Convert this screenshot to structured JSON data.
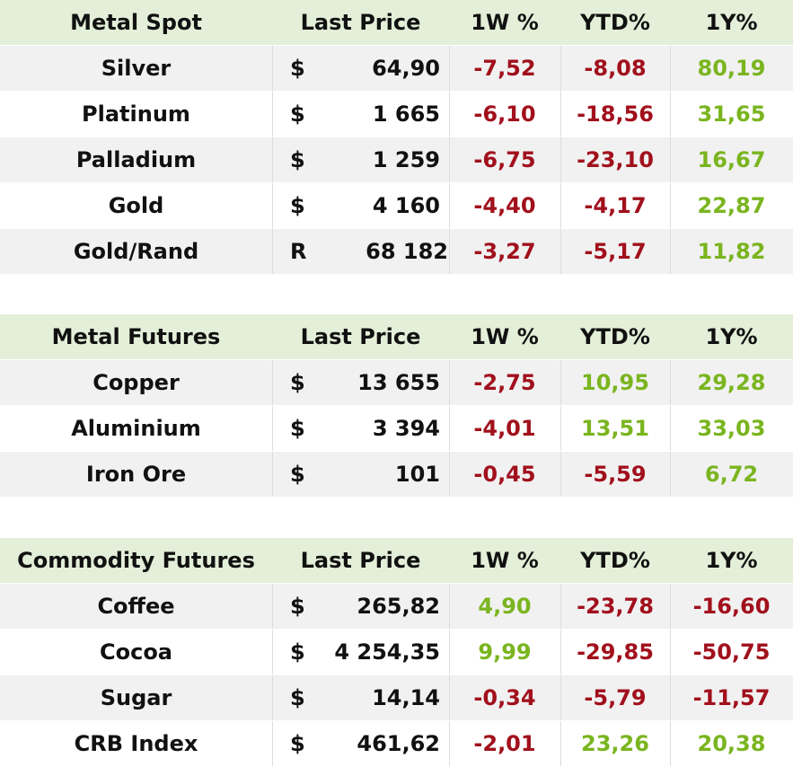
{
  "headers": {
    "price": "Last Price",
    "w": "1W %",
    "ytd": "YTD%",
    "y": "1Y%"
  },
  "tables": [
    {
      "title": "Metal Spot",
      "rows": [
        {
          "name": "Silver",
          "cur": "$",
          "price": "64,90",
          "w": "-7,52",
          "ytd": "-8,08",
          "y": "80,19"
        },
        {
          "name": "Platinum",
          "cur": "$",
          "price": "1 665",
          "w": "-6,10",
          "ytd": "-18,56",
          "y": "31,65"
        },
        {
          "name": "Palladium",
          "cur": "$",
          "price": "1 259",
          "w": "-6,75",
          "ytd": "-23,10",
          "y": "16,67"
        },
        {
          "name": "Gold",
          "cur": "$",
          "price": "4 160",
          "w": "-4,40",
          "ytd": "-4,17",
          "y": "22,87"
        },
        {
          "name": "Gold/Rand",
          "cur": "R",
          "price": "68 182",
          "w": "-3,27",
          "ytd": "-5,17",
          "y": "11,82"
        }
      ]
    },
    {
      "title": "Metal Futures",
      "rows": [
        {
          "name": "Copper",
          "cur": "$",
          "price": "13 655",
          "w": "-2,75",
          "ytd": "10,95",
          "y": "29,28"
        },
        {
          "name": "Aluminium",
          "cur": "$",
          "price": "3 394",
          "w": "-4,01",
          "ytd": "13,51",
          "y": "33,03"
        },
        {
          "name": "Iron Ore",
          "cur": "$",
          "price": "101",
          "w": "-0,45",
          "ytd": "-5,59",
          "y": "6,72"
        }
      ]
    },
    {
      "title": "Commodity Futures",
      "rows": [
        {
          "name": "Coffee",
          "cur": "$",
          "price": "265,82",
          "w": "4,90",
          "ytd": "-23,78",
          "y": "-16,60"
        },
        {
          "name": "Cocoa",
          "cur": "$",
          "price": "4 254,35",
          "w": "9,99",
          "ytd": "-29,85",
          "y": "-50,75"
        },
        {
          "name": "Sugar",
          "cur": "$",
          "price": "14,14",
          "w": "-0,34",
          "ytd": "-5,79",
          "y": "-11,57"
        },
        {
          "name": "CRB Index",
          "cur": "$",
          "price": "461,62",
          "w": "-2,01",
          "ytd": "23,26",
          "y": "20,38"
        }
      ]
    }
  ],
  "colors": {
    "negative": "#a1101c",
    "positive": "#7ab51f",
    "header_bg": "#e3efd8",
    "stripe_bg": "#f1f1f1"
  }
}
